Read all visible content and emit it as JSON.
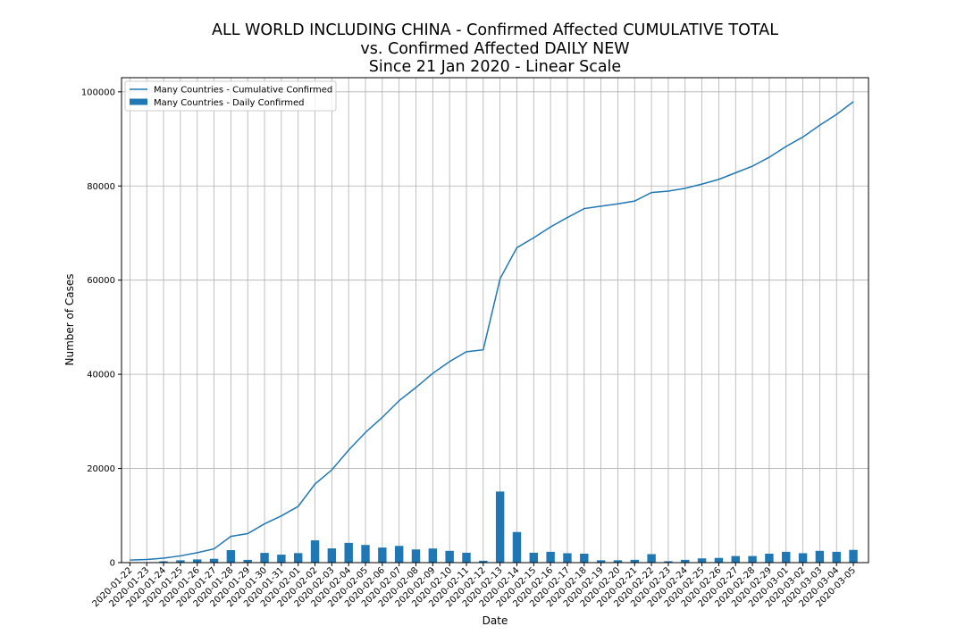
{
  "chart_data": {
    "type": "bar",
    "title": [
      "ALL WORLD INCLUDING CHINA - Confirmed Affected CUMULATIVE TOTAL",
      "vs. Confirmed Affected DAILY NEW",
      "Since 21 Jan 2020 - Linear Scale"
    ],
    "xlabel": "Date",
    "ylabel": "Number of Cases",
    "ylim": [
      0,
      103000
    ],
    "yticks": [
      0,
      20000,
      40000,
      60000,
      80000,
      100000
    ],
    "grid": true,
    "legend_position": "top-left",
    "categories": [
      "2020-01-22",
      "2020-01-23",
      "2020-01-24",
      "2020-01-25",
      "2020-01-26",
      "2020-01-27",
      "2020-01-28",
      "2020-01-29",
      "2020-01-30",
      "2020-01-31",
      "2020-02-01",
      "2020-02-02",
      "2020-02-03",
      "2020-02-04",
      "2020-02-05",
      "2020-02-06",
      "2020-02-07",
      "2020-02-08",
      "2020-02-09",
      "2020-02-10",
      "2020-02-11",
      "2020-02-12",
      "2020-02-13",
      "2020-02-14",
      "2020-02-15",
      "2020-02-16",
      "2020-02-17",
      "2020-02-18",
      "2020-02-19",
      "2020-02-20",
      "2020-02-21",
      "2020-02-22",
      "2020-02-23",
      "2020-02-24",
      "2020-02-25",
      "2020-02-26",
      "2020-02-27",
      "2020-02-28",
      "2020-02-29",
      "2020-03-01",
      "2020-03-02",
      "2020-03-03",
      "2020-03-04",
      "2020-03-05"
    ],
    "series": [
      {
        "name": "Many Countries - Cumulative Confirmed",
        "kind": "line",
        "color": "#1f77b4",
        "values": [
          555,
          654,
          941,
          1434,
          2118,
          2927,
          5578,
          6166,
          8234,
          9927,
          11950,
          16680,
          19700,
          23900,
          27650,
          30850,
          34400,
          37200,
          40200,
          42700,
          44800,
          45200,
          60300,
          66900,
          69000,
          71300,
          73300,
          75200,
          75700,
          76200,
          76800,
          78600,
          78900,
          79500,
          80400,
          81400,
          82800,
          84200,
          86100,
          88400,
          90400,
          92900,
          95200,
          97900
        ]
      },
      {
        "name": "Many Countries - Daily Confirmed",
        "kind": "bar",
        "color": "#1f77b4",
        "values": [
          0,
          99,
          287,
          493,
          684,
          809,
          2651,
          588,
          2068,
          1693,
          2023,
          4730,
          3020,
          4200,
          3750,
          3200,
          3550,
          2800,
          3000,
          2500,
          2100,
          400,
          15100,
          6500,
          2100,
          2300,
          2000,
          1900,
          500,
          500,
          600,
          1800,
          300,
          600,
          900,
          1000,
          1400,
          1400,
          1900,
          2300,
          2000,
          2500,
          2300,
          2700
        ]
      }
    ]
  }
}
